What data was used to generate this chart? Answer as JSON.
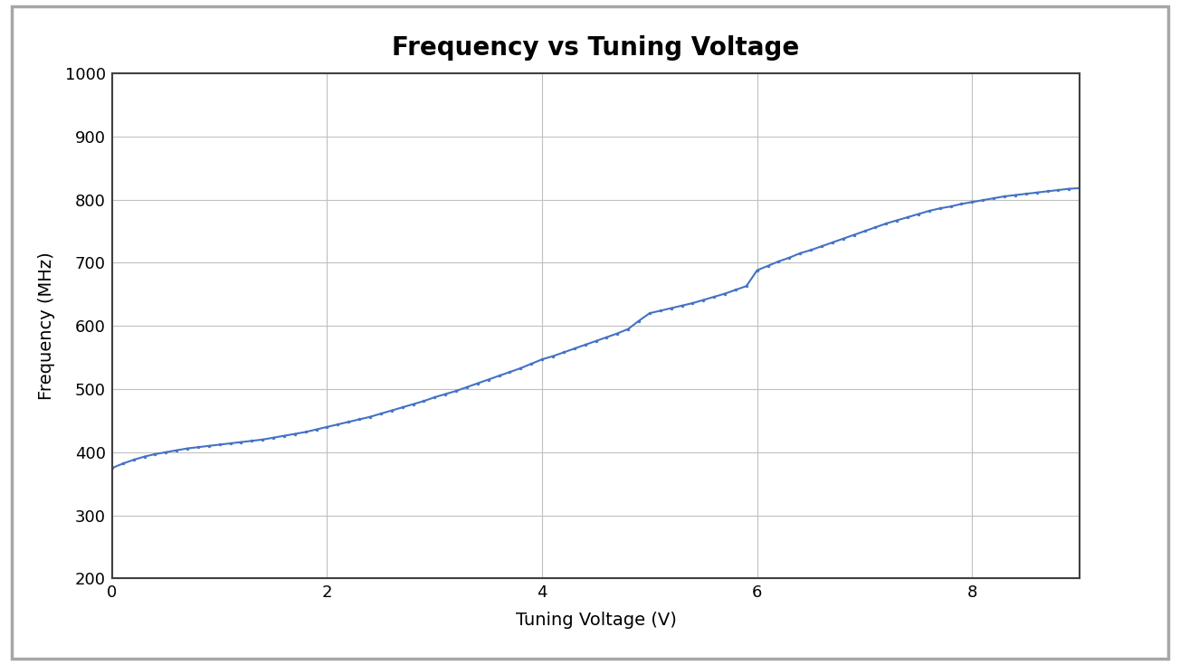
{
  "title": "Frequency vs Tuning Voltage",
  "xlabel": "Tuning Voltage (V)",
  "ylabel": "Frequency (MHz)",
  "xlim": [
    0,
    9
  ],
  "ylim": [
    200,
    1000
  ],
  "xticks": [
    0,
    2,
    4,
    6,
    8
  ],
  "yticks": [
    200,
    300,
    400,
    500,
    600,
    700,
    800,
    900,
    1000
  ],
  "line_color": "#4472C4",
  "plot_bg_color": "#FFFFFF",
  "figure_bg_color": "#FFFFFF",
  "outer_border_color": "#A6A6A6",
  "grid_color": "#C0C0C0",
  "spine_color": "#404040",
  "title_fontsize": 20,
  "label_fontsize": 14,
  "tick_fontsize": 13,
  "tuning_voltages": [
    0.0,
    0.1,
    0.2,
    0.3,
    0.4,
    0.5,
    0.6,
    0.7,
    0.8,
    0.9,
    1.0,
    1.1,
    1.2,
    1.3,
    1.4,
    1.5,
    1.6,
    1.7,
    1.8,
    1.9,
    2.0,
    2.1,
    2.2,
    2.3,
    2.4,
    2.5,
    2.6,
    2.7,
    2.8,
    2.9,
    3.0,
    3.1,
    3.2,
    3.3,
    3.4,
    3.5,
    3.6,
    3.7,
    3.8,
    3.9,
    4.0,
    4.1,
    4.2,
    4.3,
    4.4,
    4.5,
    4.6,
    4.7,
    4.8,
    4.9,
    5.0,
    5.1,
    5.2,
    5.3,
    5.4,
    5.5,
    5.6,
    5.7,
    5.8,
    5.9,
    6.0,
    6.1,
    6.2,
    6.3,
    6.4,
    6.5,
    6.6,
    6.7,
    6.8,
    6.9,
    7.0,
    7.1,
    7.2,
    7.3,
    7.4,
    7.5,
    7.6,
    7.7,
    7.8,
    7.9,
    8.0,
    8.1,
    8.2,
    8.3,
    8.4,
    8.5,
    8.6,
    8.7,
    8.8,
    8.9,
    9.0
  ],
  "frequencies": [
    375,
    382,
    388,
    393,
    397,
    400,
    403,
    406,
    408,
    410,
    412,
    414,
    416,
    418,
    420,
    423,
    426,
    429,
    432,
    436,
    440,
    444,
    448,
    452,
    456,
    461,
    466,
    471,
    476,
    481,
    487,
    492,
    497,
    503,
    509,
    515,
    521,
    527,
    533,
    540,
    547,
    552,
    558,
    564,
    570,
    576,
    582,
    588,
    595,
    608,
    620,
    624,
    628,
    632,
    636,
    641,
    646,
    651,
    657,
    663,
    688,
    695,
    702,
    708,
    715,
    720,
    726,
    732,
    738,
    744,
    750,
    756,
    762,
    767,
    772,
    777,
    782,
    786,
    789,
    793,
    796,
    799,
    802,
    805,
    807,
    809,
    811,
    813,
    815,
    817,
    818
  ]
}
